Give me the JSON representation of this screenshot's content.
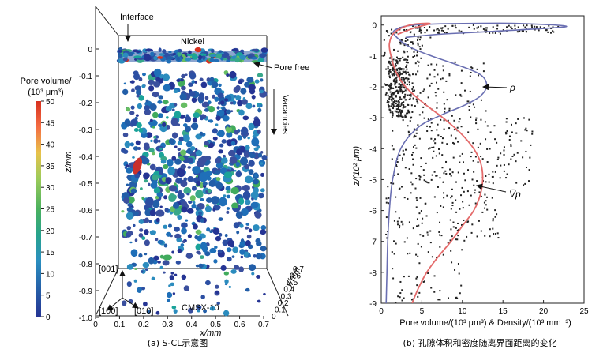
{
  "panel_a": {
    "caption": "(a) S-CL示意图",
    "labels": {
      "interface": "Interface",
      "nickel": "Nickel",
      "pore_free": "Pore free",
      "vacancies": "Vacancies",
      "cmsx": "CMSX-10",
      "dir_001": "[001]",
      "dir_100": "[100]",
      "dir_010": "[010]"
    },
    "colorbar": {
      "title_line1": "Pore volume/",
      "title_line2": "(10³ μm³)",
      "ticks": [
        "50",
        "45",
        "40",
        "35",
        "30",
        "25",
        "20",
        "15",
        "10",
        "5",
        "0"
      ],
      "colors": [
        "#d7301f",
        "#f46d43",
        "#fdae61",
        "#a6d96a",
        "#66bd63",
        "#41ab5d",
        "#1aa39a",
        "#2b8cbe",
        "#225ea8",
        "#253494"
      ]
    },
    "z_axis": {
      "title": "z/mm",
      "ticks": [
        "0",
        "-0.1",
        "-0.2",
        "-0.3",
        "-0.4",
        "-0.5",
        "-0.6",
        "-0.7",
        "-0.8",
        "-0.9",
        "-1.0"
      ]
    },
    "x_axis": {
      "title": "x/mm",
      "ticks": [
        "0",
        "0.1",
        "0.2",
        "0.3",
        "0.4",
        "0.5",
        "0.6",
        "0.7"
      ]
    },
    "y_axis": {
      "title": "y/mm",
      "ticks": [
        "0.7",
        "0.6",
        "0.5",
        "0.4",
        "0.3",
        "0.2",
        "0.1",
        "0"
      ]
    }
  },
  "panel_b": {
    "caption": "(b) 孔隙体积和密度随离界面距离的变化",
    "xlabel": "Pore volume/(10³ μm³) & Density/(10³ mm⁻³)",
    "ylabel": "z/(10² μm)",
    "rho_label": "ρ",
    "vp_label": "V̄p",
    "line_colors": {
      "rho": "#6a6fb2",
      "vp": "#e46a6a"
    }
  },
  "chart_data": {
    "type": "scatter",
    "title": "",
    "xlabel": "Pore volume/(10³ μm³) & Density/(10³ mm⁻³)",
    "ylabel": "z/(10² μm)",
    "xlim": [
      0,
      25
    ],
    "ylim": [
      -9,
      0.3
    ],
    "x_ticks": [
      "0",
      "5",
      "10",
      "15",
      "20",
      "25"
    ],
    "y_ticks": [
      "0",
      "-1",
      "-2",
      "-3",
      "-4",
      "-5",
      "-6",
      "-7",
      "-8",
      "-9"
    ],
    "series": [
      {
        "name": "ρ",
        "kind": "line",
        "color": "#6a6fb2",
        "points": [
          [
            0.6,
            -9.0
          ],
          [
            0.7,
            -8.0
          ],
          [
            0.8,
            -7.0
          ],
          [
            1.0,
            -6.0
          ],
          [
            1.4,
            -5.0
          ],
          [
            2.4,
            -4.0
          ],
          [
            4.6,
            -3.3
          ],
          [
            7.5,
            -2.9
          ],
          [
            10.2,
            -2.6
          ],
          [
            12.2,
            -2.3
          ],
          [
            13.0,
            -1.95
          ],
          [
            12.2,
            -1.6
          ],
          [
            9.5,
            -1.3
          ],
          [
            6.2,
            -1.0
          ],
          [
            3.6,
            -0.72
          ],
          [
            2.0,
            -0.42
          ],
          [
            1.6,
            -0.18
          ],
          [
            4.0,
            0.0
          ],
          [
            10.0,
            0.05
          ],
          [
            17.0,
            0.05
          ],
          [
            22.8,
            -0.05
          ],
          [
            14.0,
            -0.2
          ],
          [
            7.0,
            -0.3
          ],
          [
            3.0,
            -0.4
          ]
        ]
      },
      {
        "name": "V̄p",
        "kind": "line",
        "color": "#e46a6a",
        "points": [
          [
            3.8,
            -9.0
          ],
          [
            4.6,
            -8.5
          ],
          [
            5.6,
            -8.0
          ],
          [
            7.0,
            -7.5
          ],
          [
            8.6,
            -7.0
          ],
          [
            10.0,
            -6.5
          ],
          [
            11.4,
            -6.0
          ],
          [
            12.2,
            -5.5
          ],
          [
            12.5,
            -5.0
          ],
          [
            12.3,
            -4.5
          ],
          [
            11.4,
            -4.0
          ],
          [
            9.8,
            -3.5
          ],
          [
            7.6,
            -3.0
          ],
          [
            5.1,
            -2.5
          ],
          [
            3.0,
            -2.0
          ],
          [
            1.8,
            -1.5
          ],
          [
            1.2,
            -1.0
          ],
          [
            1.0,
            -0.6
          ],
          [
            1.6,
            -0.25
          ],
          [
            3.5,
            0.0
          ],
          [
            6.0,
            0.05
          ],
          [
            4.0,
            -0.1
          ],
          [
            2.0,
            -0.3
          ]
        ]
      },
      {
        "name": "pores",
        "kind": "scatter",
        "color": "#222222",
        "point_count": 900,
        "description_distribution": "dense near z 0 to -0.3 up to x 22, dense cluster x 0.5-4 for z -1 to -3, spreading wider to x 21 around z -3 to -5, sparse toward z -9"
      }
    ],
    "annotations": [
      {
        "text": "ρ",
        "at": [
          13.0,
          -1.95
        ]
      },
      {
        "text": "V̄p",
        "at": [
          12.4,
          -5.1
        ]
      }
    ]
  }
}
